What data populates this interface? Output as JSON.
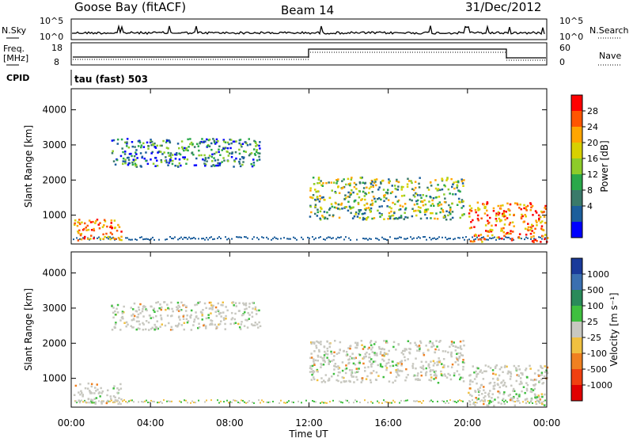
{
  "header": {
    "station": "Goose Bay (fitACF)",
    "beam": "Beam 14",
    "date": "31/Dec/2012"
  },
  "top_labels": {
    "nsky": "N.Sky",
    "nsky_hi": "10^5",
    "nsky_lo": "10^0",
    "nsearch": "N.Search",
    "nsearch_hi": "10^5",
    "nsearch_lo": "10^0",
    "freq_line1": "Freq.",
    "freq_line2": "[MHz]",
    "freq_hi": "18",
    "freq_lo": "8",
    "nave": "Nave",
    "nave_hi": "60",
    "nave_lo": "0",
    "cpid": "CPID",
    "cpid_text": "tau (fast) 503"
  },
  "chart_data": [
    {
      "type": "heatmap",
      "name": "power",
      "ylabel": "Slant Range [km]",
      "xlabel": "Time UT",
      "xlim": [
        0,
        24
      ],
      "ylim": [
        180,
        4600
      ],
      "x_ticks": [
        "00:00",
        "04:00",
        "08:00",
        "12:00",
        "16:00",
        "20:00",
        "00:00"
      ],
      "y_ticks": [
        1000,
        2000,
        3000,
        4000
      ],
      "colorbar": {
        "label": "Power [dB]",
        "ticks": [
          "28",
          "24",
          "20",
          "16",
          "12",
          "8",
          "4"
        ],
        "colors": [
          "#ff0000",
          "#ff5500",
          "#ffa500",
          "#d8d000",
          "#8dcc2a",
          "#2aa84a",
          "#3a7a6a",
          "#1c5e9c",
          "#0000ff"
        ]
      },
      "echo_regions": [
        {
          "t0": 0.1,
          "t1": 2.5,
          "r0": 300,
          "r1": 900,
          "level": "high"
        },
        {
          "t0": 2.0,
          "t1": 9.5,
          "r0": 2400,
          "r1": 3200,
          "level": "mid"
        },
        {
          "t0": 12.0,
          "t1": 19.8,
          "r0": 900,
          "r1": 2100,
          "level": "mid-high"
        },
        {
          "t0": 20.0,
          "t1": 24.0,
          "r0": 250,
          "r1": 1400,
          "level": "high"
        }
      ]
    },
    {
      "type": "heatmap",
      "name": "velocity",
      "ylabel": "Slant Range [km]",
      "xlabel": "Time UT",
      "xlim": [
        0,
        24
      ],
      "ylim": [
        180,
        4600
      ],
      "x_ticks": [
        "00:00",
        "04:00",
        "08:00",
        "12:00",
        "16:00",
        "20:00",
        "00:00"
      ],
      "y_ticks": [
        1000,
        2000,
        3000,
        4000
      ],
      "colorbar": {
        "label": "Velocity [m s⁻¹]",
        "ticks": [
          "1000",
          "500",
          "100",
          "25",
          "-25",
          "-100",
          "-500",
          "-1000"
        ],
        "colors": [
          "#1a3a9a",
          "#3a6fb0",
          "#2a8a5a",
          "#3fbf3f",
          "#c8c8c0",
          "#f0c040",
          "#f08020",
          "#f04010",
          "#e00000"
        ]
      }
    }
  ]
}
